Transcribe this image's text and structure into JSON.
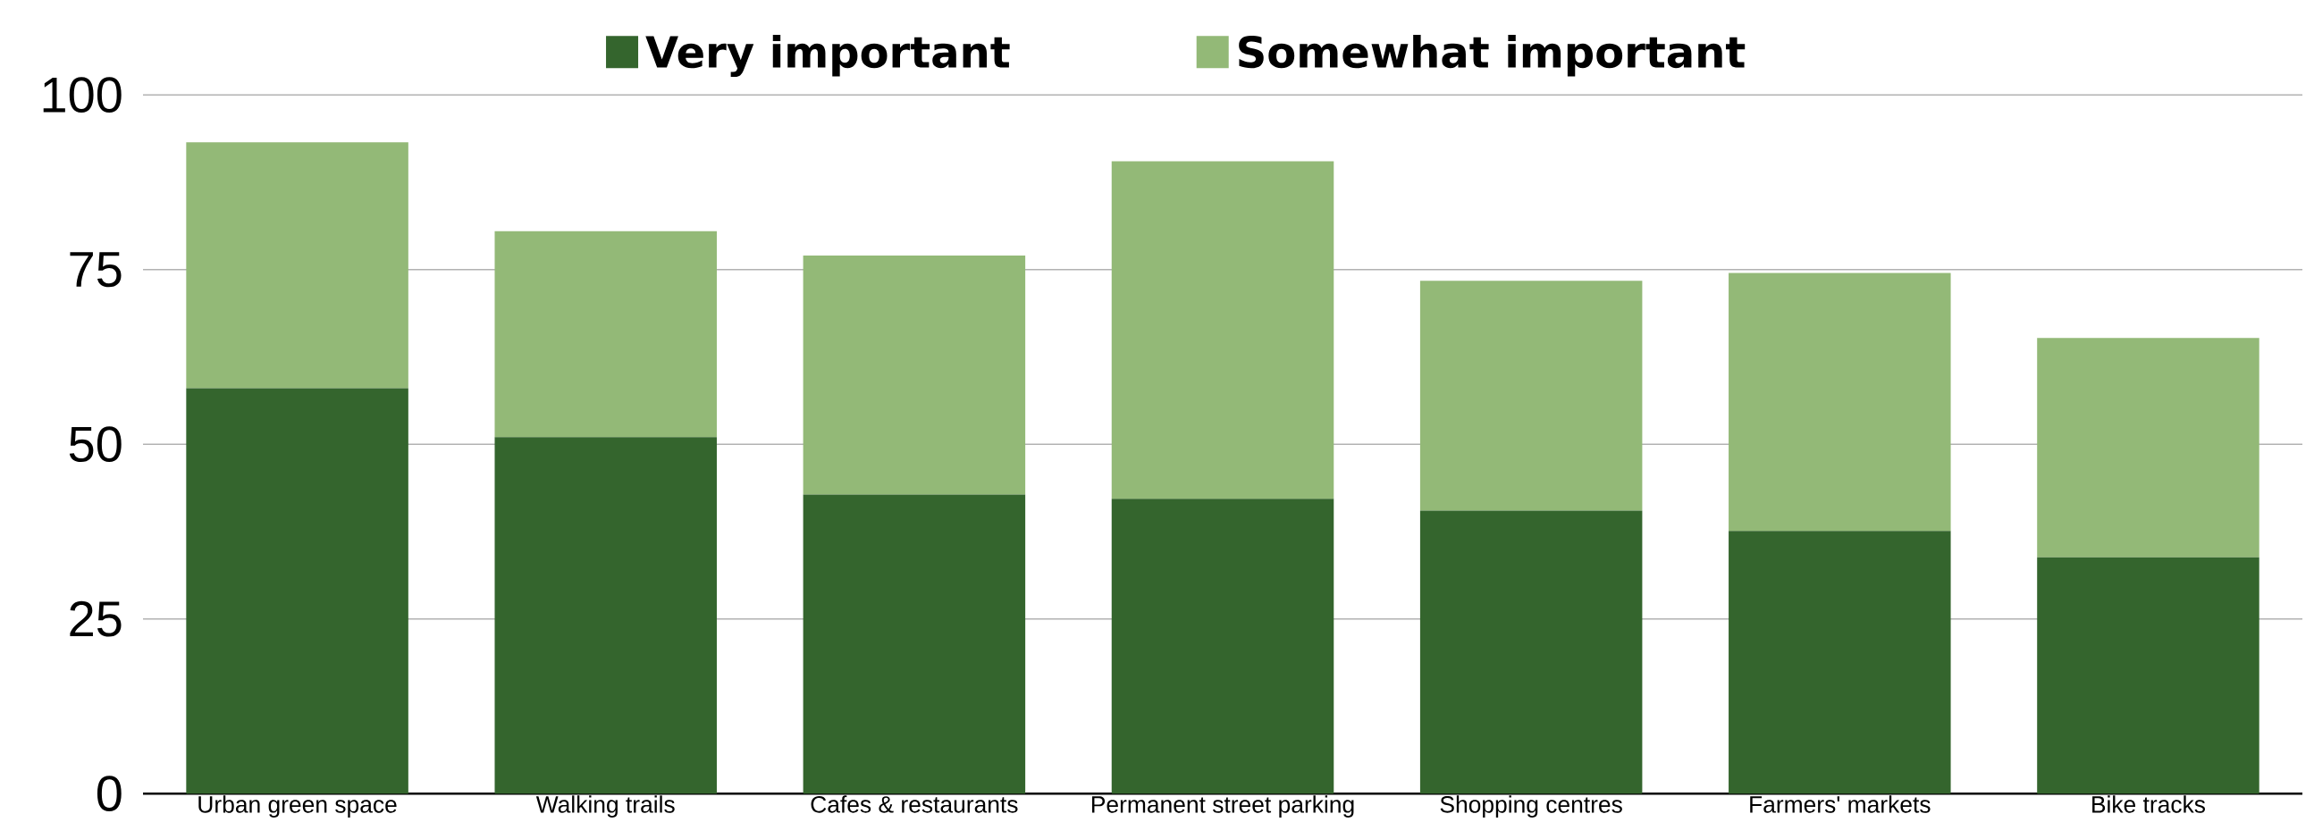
{
  "chart_data": {
    "type": "bar",
    "stacked": true,
    "categories": [
      "Urban green space",
      "Walking trails",
      "Cafes & restaurants",
      "Permanent street parking",
      "Shopping centres",
      "Farmers' markets",
      "Bike tracks"
    ],
    "series": [
      {
        "name": "Very important",
        "color": "#34652d",
        "values": [
          58,
          51,
          42.8,
          42.2,
          40.5,
          37.6,
          33.8
        ]
      },
      {
        "name": "Somewhat important",
        "color": "#93b977",
        "values": [
          35.2,
          29.5,
          34.2,
          48.3,
          32.9,
          36.9,
          31.4
        ]
      }
    ],
    "ylim": [
      0,
      100
    ],
    "yticks": [
      0,
      25,
      50,
      75,
      100
    ],
    "grid": "y",
    "legend": "top"
  }
}
